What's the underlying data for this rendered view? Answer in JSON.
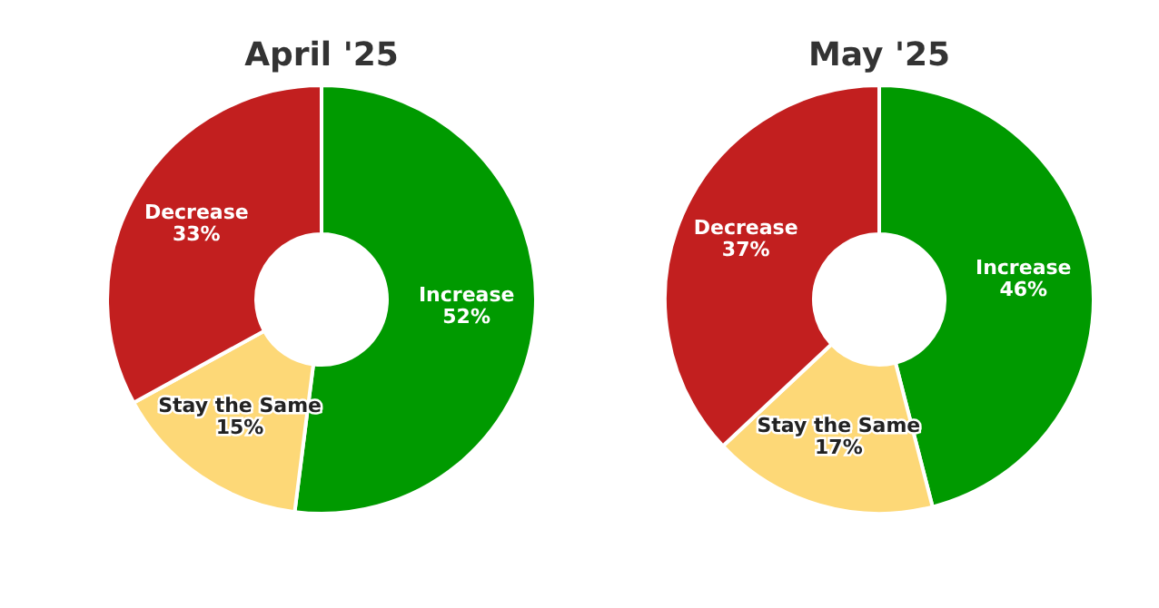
{
  "chart_data": [
    {
      "type": "donut",
      "title": "April '25",
      "categories": [
        "Increase",
        "Stay the Same",
        "Decrease"
      ],
      "values": [
        52,
        15,
        33
      ],
      "colors": [
        "#009a00",
        "#fdd877",
        "#c21f1f"
      ],
      "value_labels": [
        "52%",
        "15%",
        "33%"
      ]
    },
    {
      "type": "donut",
      "title": "May '25",
      "categories": [
        "Increase",
        "Stay the Same",
        "Decrease"
      ],
      "values": [
        46,
        17,
        37
      ],
      "colors": [
        "#009a00",
        "#fdd877",
        "#c21f1f"
      ],
      "value_labels": [
        "46%",
        "17%",
        "37%"
      ]
    }
  ]
}
